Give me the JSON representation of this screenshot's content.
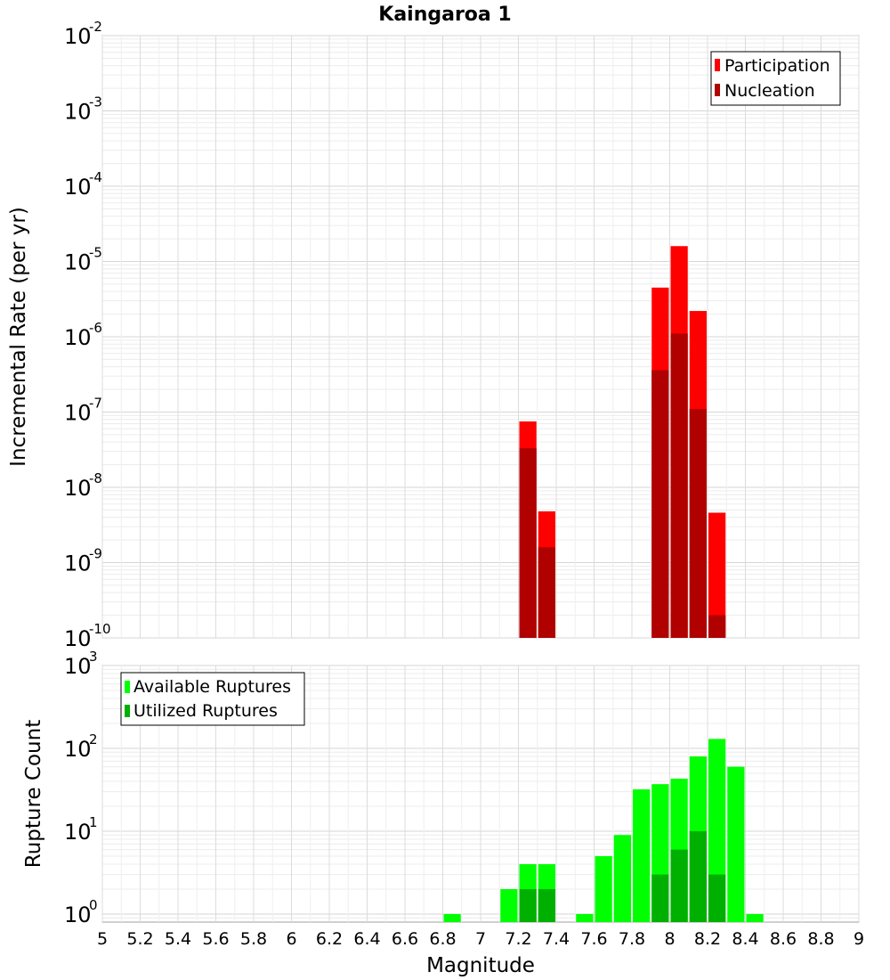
{
  "chart_data": [
    {
      "type": "bar",
      "title": "Kaingaroa 1",
      "xlabel": "",
      "ylabel": "Incremental Rate (per yr)",
      "yscale": "log",
      "ylim": [
        1e-10,
        0.01
      ],
      "xlim": [
        5,
        9
      ],
      "bin_width": 0.1,
      "grid": true,
      "legend_position": "top-right",
      "ytick_exponents": [
        "-10",
        "-9",
        "-8",
        "-7",
        "-6",
        "-5",
        "-4",
        "-3",
        "-2"
      ],
      "series": [
        {
          "name": "Participation",
          "color": "#ff0000",
          "x": [
            7.25,
            7.35,
            7.95,
            8.05,
            8.15,
            8.25
          ],
          "values": [
            7.5e-08,
            4.8e-09,
            4.5e-06,
            1.6e-05,
            2.2e-06,
            4.6e-09
          ]
        },
        {
          "name": "Nucleation",
          "color": "#b00000",
          "x": [
            7.25,
            7.35,
            7.95,
            8.05,
            8.15,
            8.25
          ],
          "values": [
            3.3e-08,
            1.6e-09,
            3.6e-07,
            1.1e-06,
            1.1e-07,
            2e-10
          ]
        }
      ]
    },
    {
      "type": "bar",
      "title": "",
      "xlabel": "Magnitude",
      "ylabel": "Rupture Count",
      "yscale": "log",
      "ylim": [
        0.8,
        1000
      ],
      "xlim": [
        5,
        9
      ],
      "bin_width": 0.1,
      "grid": true,
      "legend_position": "top-left",
      "ytick_exponents": [
        "0",
        "1",
        "2",
        "3"
      ],
      "xticks": [
        "5",
        "5.2",
        "5.4",
        "5.6",
        "5.8",
        "6",
        "6.2",
        "6.4",
        "6.6",
        "6.8",
        "7",
        "7.2",
        "7.4",
        "7.6",
        "7.8",
        "8",
        "8.2",
        "8.4",
        "8.6",
        "8.8",
        "9"
      ],
      "series": [
        {
          "name": "Available Ruptures",
          "color": "#00ff00",
          "x": [
            6.85,
            7.15,
            7.25,
            7.35,
            7.55,
            7.65,
            7.75,
            7.85,
            7.95,
            8.05,
            8.15,
            8.25,
            8.35,
            8.45
          ],
          "values": [
            1,
            2,
            4,
            4,
            1,
            5,
            9,
            32,
            37,
            43,
            80,
            130,
            60,
            1
          ]
        },
        {
          "name": "Utilized Ruptures",
          "color": "#00b000",
          "x": [
            7.25,
            7.35,
            7.95,
            8.05,
            8.15,
            8.25
          ],
          "values": [
            2,
            2,
            3,
            6,
            10,
            3
          ]
        }
      ]
    }
  ]
}
